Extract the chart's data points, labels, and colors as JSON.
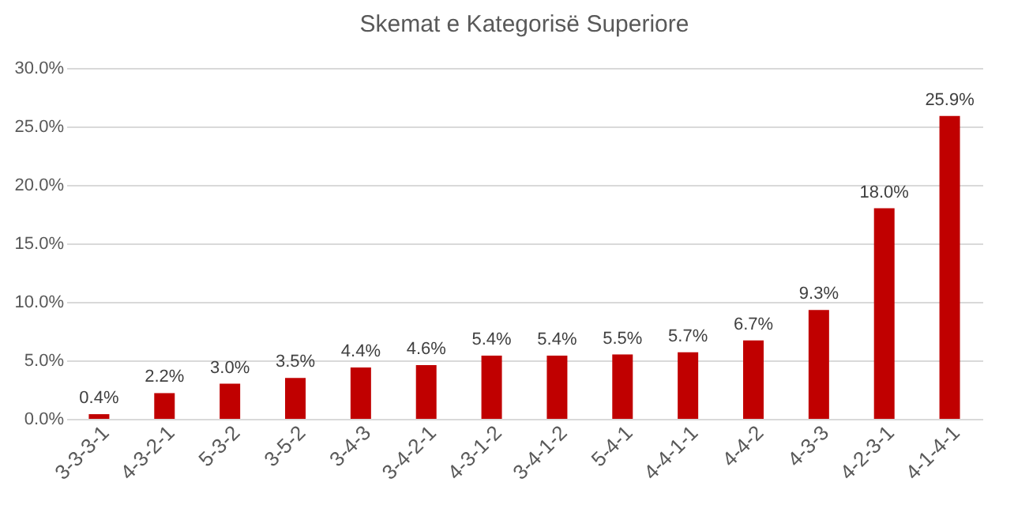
{
  "chart_data": {
    "type": "bar",
    "title": "Skemat e Kategorisë Superiore",
    "categories": [
      "3-3-3-1",
      "4-3-2-1",
      "5-3-2",
      "3-5-2",
      "3-4-3",
      "3-4-2-1",
      "4-3-1-2",
      "3-4-1-2",
      "5-4-1",
      "4-4-1-1",
      "4-4-2",
      "4-3-3",
      "4-2-3-1",
      "4-1-4-1"
    ],
    "values": [
      0.4,
      2.2,
      3.0,
      3.5,
      4.4,
      4.6,
      5.4,
      5.4,
      5.5,
      5.7,
      6.7,
      9.3,
      18.0,
      25.9
    ],
    "value_labels": [
      "0.4%",
      "2.2%",
      "3.0%",
      "3.5%",
      "4.4%",
      "4.6%",
      "5.4%",
      "5.4%",
      "5.5%",
      "5.7%",
      "6.7%",
      "9.3%",
      "18.0%",
      "25.9%"
    ],
    "color": "#c00000",
    "ylim": [
      0,
      30
    ],
    "yticks": [
      {
        "value": 0,
        "label": "0.0%"
      },
      {
        "value": 5,
        "label": "5.0%"
      },
      {
        "value": 10,
        "label": "10.0%"
      },
      {
        "value": 15,
        "label": "15.0%"
      },
      {
        "value": 20,
        "label": "20.0%"
      },
      {
        "value": 25,
        "label": "25.0%"
      },
      {
        "value": 30,
        "label": "30.0%"
      }
    ],
    "grid": "y"
  }
}
